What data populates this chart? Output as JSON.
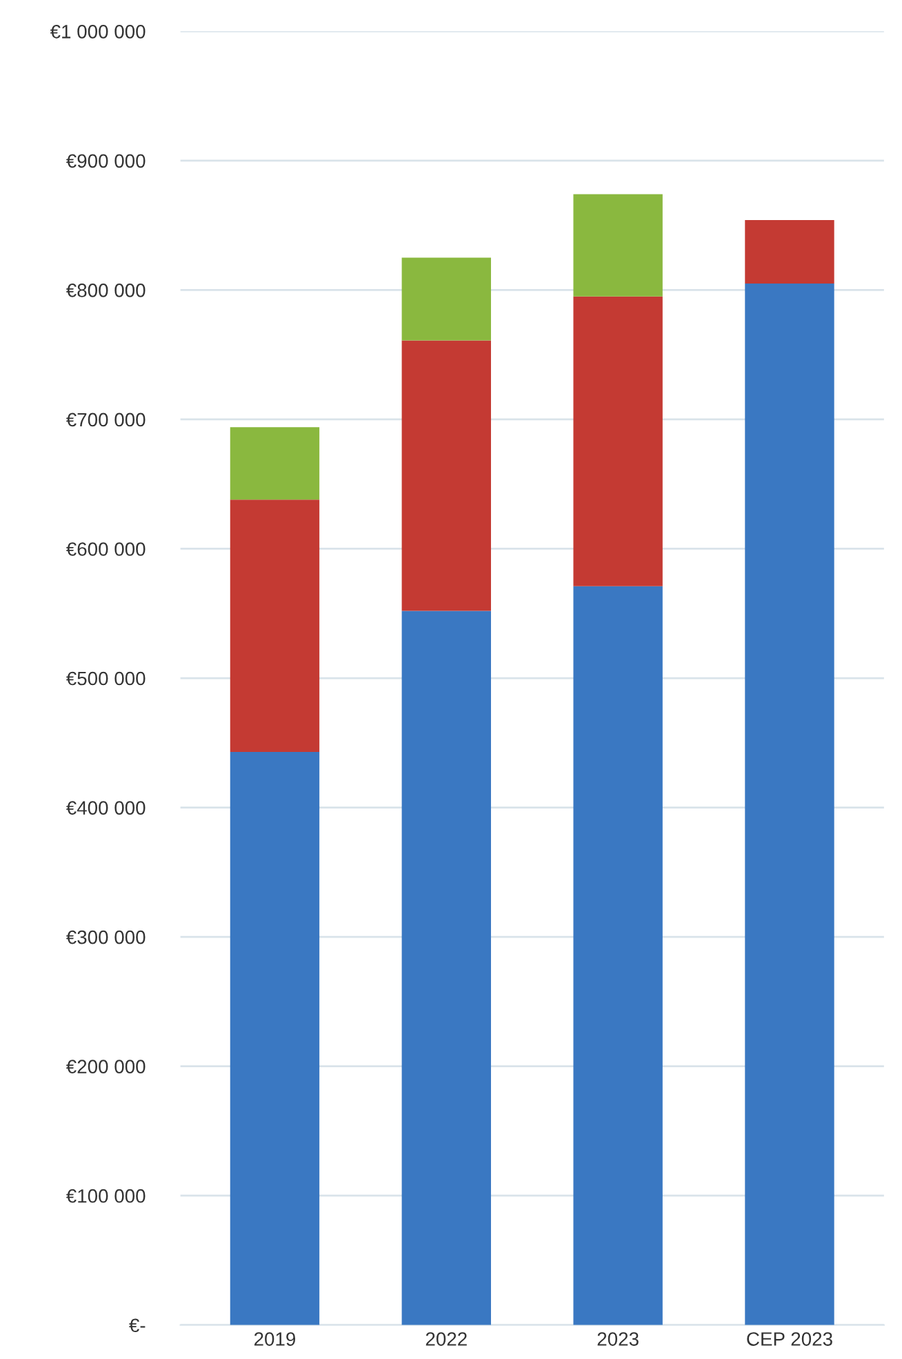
{
  "chart_data": {
    "type": "bar",
    "stacked": true,
    "categories": [
      "2019",
      "2022",
      "2023",
      "CEP 2023"
    ],
    "series": [
      {
        "color": "#3a78c2",
        "values": [
          443000,
          552000,
          571000,
          805000
        ]
      },
      {
        "color": "#c43a33",
        "values": [
          195000,
          209000,
          224000,
          49000
        ]
      },
      {
        "color": "#8ab83f",
        "values": [
          56000,
          64000,
          79000,
          null
        ]
      }
    ],
    "ylim": [
      0,
      1000000
    ],
    "yticks": [
      {
        "value": 0,
        "label": "€-"
      },
      {
        "value": 100000,
        "label": "€100 000"
      },
      {
        "value": 200000,
        "label": "€200 000"
      },
      {
        "value": 300000,
        "label": "€300 000"
      },
      {
        "value": 400000,
        "label": "€400 000"
      },
      {
        "value": 500000,
        "label": "€500 000"
      },
      {
        "value": 600000,
        "label": "€600 000"
      },
      {
        "value": 700000,
        "label": "€700 000"
      },
      {
        "value": 800000,
        "label": "€800 000"
      },
      {
        "value": 900000,
        "label": "€900 000"
      },
      {
        "value": 1000000,
        "label": "€1 000 000"
      }
    ],
    "grid": "y",
    "legend": false
  }
}
